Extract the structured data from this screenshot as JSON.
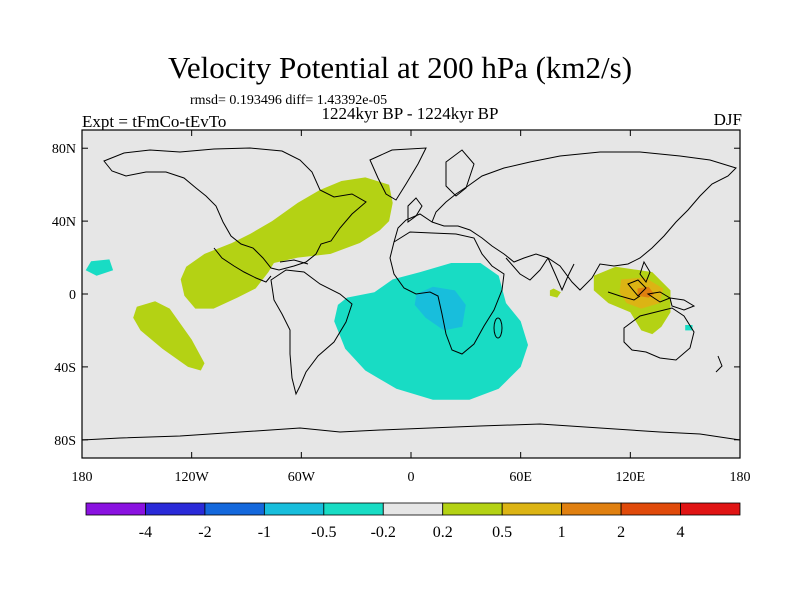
{
  "chart_data": {
    "type": "contour-map",
    "title": "Velocity Potential at 200 hPa (km2/s)",
    "stats_line": "rmsd= 0.193496 diff= 1.43392e-05",
    "center_subtitle": "1224kyr BP - 1224kyr BP",
    "left_subtitle": "Expt = tFmCo-tEvTo",
    "right_subtitle": "DJF",
    "x_axis": {
      "range": [
        -180,
        180
      ],
      "ticks": [
        {
          "value": -180,
          "label": "180"
        },
        {
          "value": -120,
          "label": "120W"
        },
        {
          "value": -60,
          "label": "60W"
        },
        {
          "value": 0,
          "label": "0"
        },
        {
          "value": 60,
          "label": "60E"
        },
        {
          "value": 120,
          "label": "120E"
        },
        {
          "value": 180,
          "label": "180"
        }
      ]
    },
    "y_axis": {
      "range": [
        -90,
        90
      ],
      "ticks": [
        {
          "value": 80,
          "label": "80N"
        },
        {
          "value": 40,
          "label": "40N"
        },
        {
          "value": 0,
          "label": "0"
        },
        {
          "value": -40,
          "label": "40S"
        },
        {
          "value": -80,
          "label": "80S"
        }
      ]
    },
    "colorbar": {
      "colors": [
        "#8a12e0",
        "#2a2ad8",
        "#1468dc",
        "#18bedc",
        "#18dcc4",
        "#e6e6e6",
        "#b4d214",
        "#dcb414",
        "#e08010",
        "#e04a0a",
        "#e01414"
      ],
      "labels": [
        "-4",
        "-2",
        "-1",
        "-0.5",
        "-0.2",
        "0.2",
        "0.5",
        "1",
        "2",
        "4"
      ]
    },
    "regions": [
      {
        "name": "north-atlantic-positive",
        "level": "0.2 to 0.5",
        "color": "#b4d214",
        "outline": [
          [
            -123,
            15
          ],
          [
            -113,
            22
          ],
          [
            -98,
            28
          ],
          [
            -88,
            33
          ],
          [
            -76,
            40
          ],
          [
            -62,
            50
          ],
          [
            -50,
            57
          ],
          [
            -38,
            62
          ],
          [
            -25,
            64
          ],
          [
            -12,
            60
          ],
          [
            -10,
            50
          ],
          [
            -12,
            40
          ],
          [
            -17,
            35
          ],
          [
            -28,
            28
          ],
          [
            -44,
            22
          ],
          [
            -62,
            20
          ],
          [
            -75,
            17
          ],
          [
            -78,
            12
          ],
          [
            -85,
            3
          ],
          [
            -95,
            -2
          ],
          [
            -108,
            -8
          ],
          [
            -118,
            -8
          ],
          [
            -124,
            -1
          ],
          [
            -126,
            8
          ]
        ]
      },
      {
        "name": "south-pacific-positive",
        "level": "0.2 to 0.5",
        "color": "#b4d214",
        "outline": [
          [
            -150,
            -7
          ],
          [
            -140,
            -4
          ],
          [
            -132,
            -8
          ],
          [
            -120,
            -25
          ],
          [
            -113,
            -38
          ],
          [
            -115,
            -42
          ],
          [
            -122,
            -40
          ],
          [
            -136,
            -30
          ],
          [
            -148,
            -20
          ],
          [
            -152,
            -13
          ]
        ]
      },
      {
        "name": "indian-ocean-small-positive",
        "level": "0.2 to 0.5",
        "color": "#b4d214",
        "outline": [
          [
            78,
            3
          ],
          [
            82,
            1
          ],
          [
            80,
            -2
          ],
          [
            76,
            -1
          ],
          [
            76,
            2
          ]
        ]
      },
      {
        "name": "maritime-continent-positive",
        "level": "0.2 to 0.5",
        "color": "#b4d214",
        "outline": [
          [
            100,
            10
          ],
          [
            112,
            15
          ],
          [
            132,
            12
          ],
          [
            142,
            2
          ],
          [
            142,
            -10
          ],
          [
            137,
            -18
          ],
          [
            132,
            -22
          ],
          [
            126,
            -20
          ],
          [
            120,
            -10
          ],
          [
            108,
            -5
          ],
          [
            100,
            2
          ]
        ]
      },
      {
        "name": "maritime-continent-core",
        "level": "0.5 to 1",
        "color": "#dcb414",
        "outline": [
          [
            115,
            8
          ],
          [
            128,
            9
          ],
          [
            138,
            3
          ],
          [
            136,
            -5
          ],
          [
            126,
            -8
          ],
          [
            118,
            -5
          ],
          [
            114,
            1
          ]
        ]
      },
      {
        "name": "maritime-continent-peak",
        "level": "1 to 2",
        "color": "#e08010",
        "outline": [
          [
            124,
            3
          ],
          [
            130,
            4
          ],
          [
            133,
            0
          ],
          [
            130,
            -2
          ],
          [
            124,
            -1
          ]
        ]
      },
      {
        "name": "atlantic-africa-negative",
        "level": "-0.5 to -0.2",
        "color": "#18dcc4",
        "outline": [
          [
            -35,
            -2
          ],
          [
            -20,
            1
          ],
          [
            -10,
            8
          ],
          [
            5,
            12
          ],
          [
            22,
            17
          ],
          [
            38,
            17
          ],
          [
            48,
            10
          ],
          [
            52,
            -5
          ],
          [
            60,
            -15
          ],
          [
            64,
            -28
          ],
          [
            60,
            -40
          ],
          [
            48,
            -52
          ],
          [
            32,
            -58
          ],
          [
            12,
            -58
          ],
          [
            -8,
            -52
          ],
          [
            -25,
            -42
          ],
          [
            -36,
            -30
          ],
          [
            -42,
            -15
          ],
          [
            -40,
            -6
          ]
        ]
      },
      {
        "name": "central-africa-negative-core",
        "level": "-1 to -0.5",
        "color": "#18bedc",
        "outline": [
          [
            3,
            0
          ],
          [
            12,
            4
          ],
          [
            24,
            2
          ],
          [
            30,
            -6
          ],
          [
            28,
            -18
          ],
          [
            18,
            -20
          ],
          [
            8,
            -13
          ],
          [
            2,
            -6
          ]
        ]
      },
      {
        "name": "east-pacific-small-negative",
        "level": "-0.5 to -0.2",
        "color": "#18dcc4",
        "outline": [
          [
            -175,
            18
          ],
          [
            -165,
            19
          ],
          [
            -163,
            13
          ],
          [
            -172,
            10
          ],
          [
            -178,
            13
          ]
        ]
      },
      {
        "name": "australia-small-negative",
        "level": "-0.5 to -0.2",
        "color": "#18dcc4",
        "outline": [
          [
            150,
            -17
          ],
          [
            154,
            -17
          ],
          [
            154,
            -20
          ],
          [
            150,
            -20
          ]
        ]
      }
    ]
  }
}
